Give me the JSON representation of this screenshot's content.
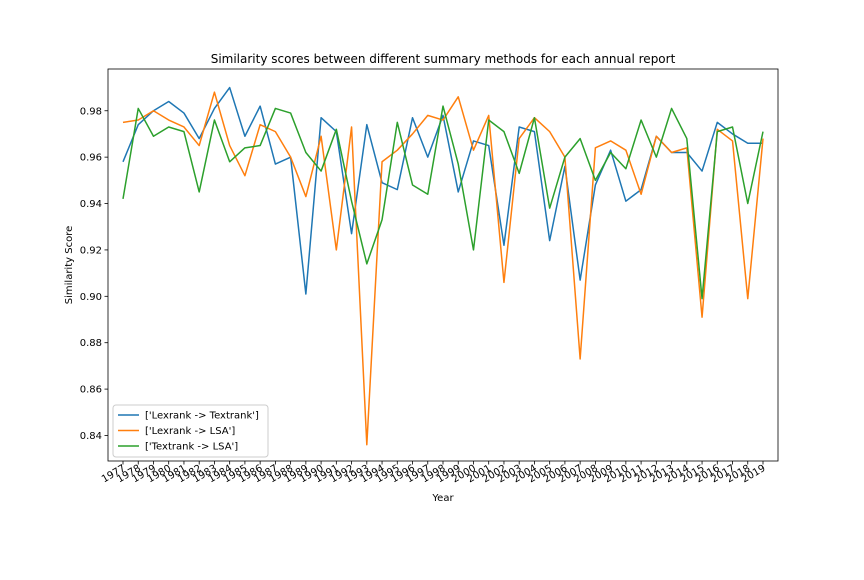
{
  "chart_data": {
    "type": "line",
    "title": "Similarity scores between different summary methods for each annual report",
    "xlabel": "Year",
    "ylabel": "Similarity Score",
    "x": [
      "1977",
      "1978",
      "1979",
      "1980",
      "1981",
      "1982",
      "1983",
      "1984",
      "1985",
      "1986",
      "1987",
      "1988",
      "1989",
      "1990",
      "1991",
      "1992",
      "1993",
      "1994",
      "1995",
      "1996",
      "1997",
      "1998",
      "1999",
      "2000",
      "2001",
      "2002",
      "2003",
      "2004",
      "2005",
      "2006",
      "2007",
      "2008",
      "2009",
      "2010",
      "2011",
      "2012",
      "2013",
      "2014",
      "2015",
      "2016",
      "2017",
      "2018",
      "2019"
    ],
    "ylim": [
      0.829,
      0.998
    ],
    "yticks": [
      "0.84",
      "0.86",
      "0.88",
      "0.90",
      "0.92",
      "0.94",
      "0.96",
      "0.98"
    ],
    "grid": false,
    "legend_position": "lower-left",
    "series": [
      {
        "name": "['Lexrank -> Textrank']",
        "color": "#1f77b4",
        "values": [
          0.958,
          0.974,
          0.98,
          0.984,
          0.979,
          0.968,
          0.981,
          0.99,
          0.969,
          0.982,
          0.957,
          0.96,
          0.901,
          0.977,
          0.971,
          0.927,
          0.974,
          0.949,
          0.946,
          0.977,
          0.96,
          0.978,
          0.945,
          0.967,
          0.965,
          0.922,
          0.973,
          0.971,
          0.924,
          0.956,
          0.907,
          0.948,
          0.963,
          0.941,
          0.946,
          0.969,
          0.962,
          0.962,
          0.954,
          0.975,
          0.97,
          0.966,
          0.966
        ]
      },
      {
        "name": "['Lexrank -> LSA']",
        "color": "#ff7f0e",
        "values": [
          0.975,
          0.976,
          0.98,
          0.976,
          0.973,
          0.965,
          0.988,
          0.965,
          0.952,
          0.974,
          0.971,
          0.96,
          0.943,
          0.969,
          0.92,
          0.973,
          0.836,
          0.958,
          0.963,
          0.97,
          0.978,
          0.976,
          0.986,
          0.963,
          0.978,
          0.906,
          0.968,
          0.977,
          0.971,
          0.96,
          0.873,
          0.964,
          0.967,
          0.963,
          0.944,
          0.969,
          0.962,
          0.964,
          0.891,
          0.972,
          0.967,
          0.899,
          0.968
        ]
      },
      {
        "name": "['Textrank -> LSA']",
        "color": "#2ca02c",
        "values": [
          0.942,
          0.981,
          0.969,
          0.973,
          0.971,
          0.945,
          0.976,
          0.958,
          0.964,
          0.965,
          0.981,
          0.979,
          0.962,
          0.954,
          0.972,
          0.941,
          0.914,
          0.933,
          0.975,
          0.948,
          0.944,
          0.982,
          0.957,
          0.92,
          0.976,
          0.971,
          0.953,
          0.977,
          0.938,
          0.96,
          0.968,
          0.95,
          0.962,
          0.955,
          0.976,
          0.96,
          0.981,
          0.968,
          0.899,
          0.971,
          0.973,
          0.94,
          0.971
        ]
      }
    ]
  }
}
